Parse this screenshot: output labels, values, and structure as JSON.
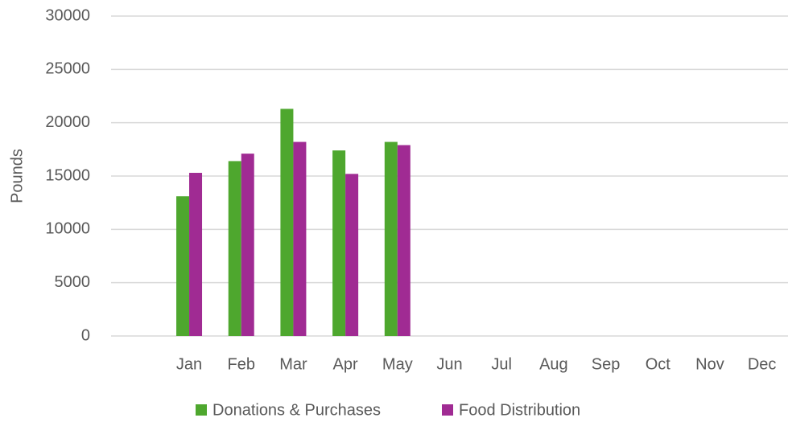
{
  "chart_data": {
    "type": "bar",
    "y_label": "Pounds",
    "categories": [
      null,
      "Jan",
      "Feb",
      "Mar",
      "Apr",
      "May",
      "Jun",
      "Jul",
      "Aug",
      "Sep",
      "Oct",
      "Nov",
      "Dec"
    ],
    "series": [
      {
        "name": "Donations & Purchases",
        "color": "#4ea72e",
        "values": [
          null,
          13100,
          16400,
          21300,
          17400,
          18200,
          null,
          null,
          null,
          null,
          null,
          null,
          null
        ]
      },
      {
        "name": "Food Distribution",
        "color": "#a02b93",
        "values": [
          null,
          15300,
          17100,
          18200,
          15200,
          17900,
          null,
          null,
          null,
          null,
          null,
          null,
          null
        ]
      }
    ],
    "ylim": [
      0,
      30000
    ],
    "yticks": [
      0,
      5000,
      10000,
      15000,
      20000,
      25000,
      30000
    ],
    "grid": true,
    "legend": "bottom"
  }
}
